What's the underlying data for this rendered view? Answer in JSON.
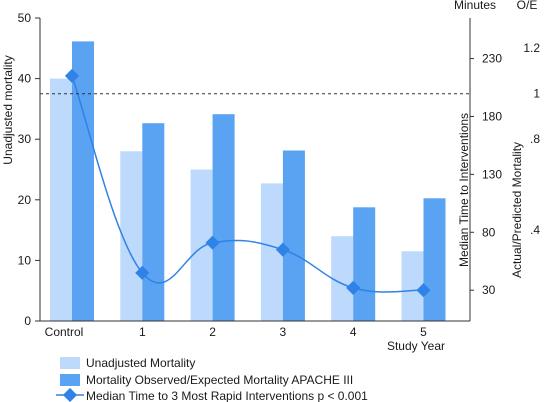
{
  "chart_data": {
    "type": "bar",
    "categories": [
      "Control",
      "1",
      "2",
      "3",
      "4",
      "5"
    ],
    "xlabel": "Study Year",
    "series": [
      {
        "name": "Unadjusted Mortality",
        "kind": "bar",
        "axis": "left",
        "color": "#bdd9fb",
        "values": [
          40,
          28,
          25,
          22.7,
          14,
          11.5
        ]
      },
      {
        "name": "Mortality Observed/Expected Mortality APACHE III",
        "kind": "bar",
        "axis": "oe",
        "color": "#5aa2f2",
        "values": [
          1.23,
          0.87,
          0.91,
          0.75,
          0.5,
          0.54
        ]
      },
      {
        "name": "Median Time to 3 Most Rapid Interventions p < 0.001",
        "kind": "line",
        "axis": "minutes",
        "color": "#2f82e6",
        "values": [
          215,
          45,
          71,
          65,
          32,
          30
        ]
      }
    ],
    "axes": {
      "left": {
        "label": "Unadjusted mortality",
        "ylim": [
          0,
          50
        ],
        "ticks": [
          0,
          10,
          20,
          30,
          40,
          50
        ]
      },
      "minutes": {
        "header": "Minutes",
        "label": "Median Time to Interventions",
        "ticks": [
          30,
          80,
          130,
          180,
          230
        ],
        "tick_labels": [
          "30",
          "80",
          "130",
          "180",
          "230"
        ],
        "value_at_bottom": 3.4,
        "value_at_top": 265
      },
      "oe": {
        "header": "O/E",
        "label": "Actual/Predicted Mortality",
        "ylim": [
          0,
          1.333
        ],
        "ticks": [
          0.4,
          0.8,
          1.0,
          1.2
        ],
        "tick_labels": [
          ".4",
          ".8",
          "1",
          "1.2"
        ],
        "reference_line": 1.0
      }
    },
    "legend_position": "bottom-left"
  }
}
